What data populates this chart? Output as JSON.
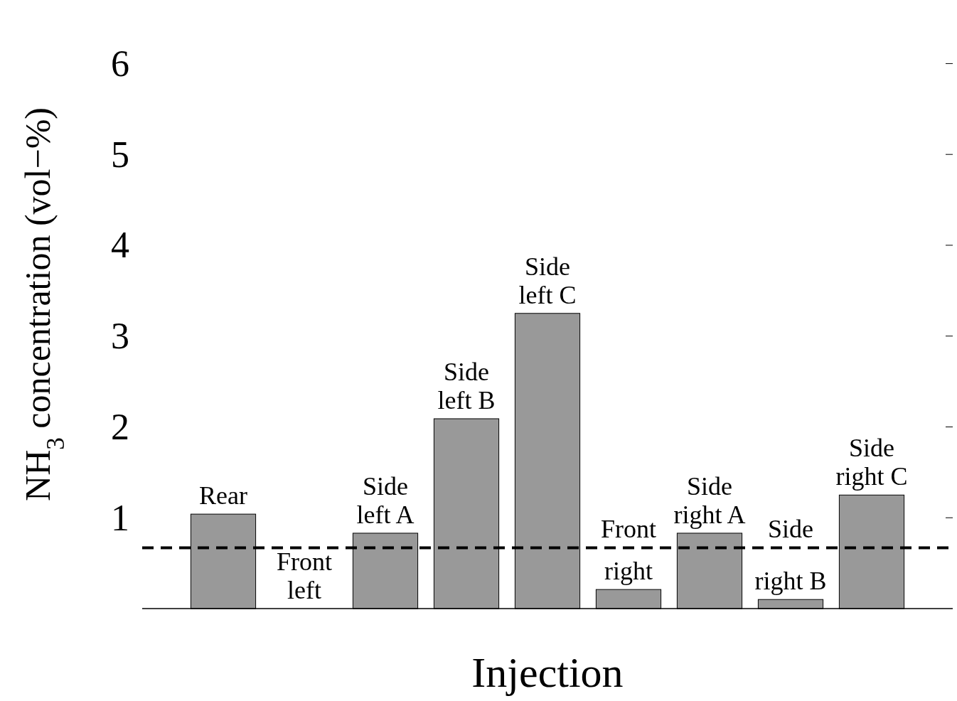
{
  "chart_data": {
    "type": "bar",
    "ylabel": "NH$_{3}$ concentration (vol−%)",
    "xlabel": "Injection",
    "categories": [
      "Rear",
      "Front left",
      "Side left A",
      "Side left B",
      "Side left C",
      "Front right",
      "Side right A",
      "Side right B",
      "Side right C"
    ],
    "values": [
      1.04,
      0,
      0.83,
      2.09,
      3.25,
      0.21,
      0.83,
      0.1,
      1.25
    ],
    "color": "#999999",
    "ylim": [
      0,
      6.7
    ],
    "yticks": [
      1,
      2,
      3,
      4,
      5,
      6
    ],
    "ref_lines": [
      {
        "axis": "y",
        "value": 0.67,
        "line_style": "dashed",
        "color": "#000000"
      }
    ]
  }
}
